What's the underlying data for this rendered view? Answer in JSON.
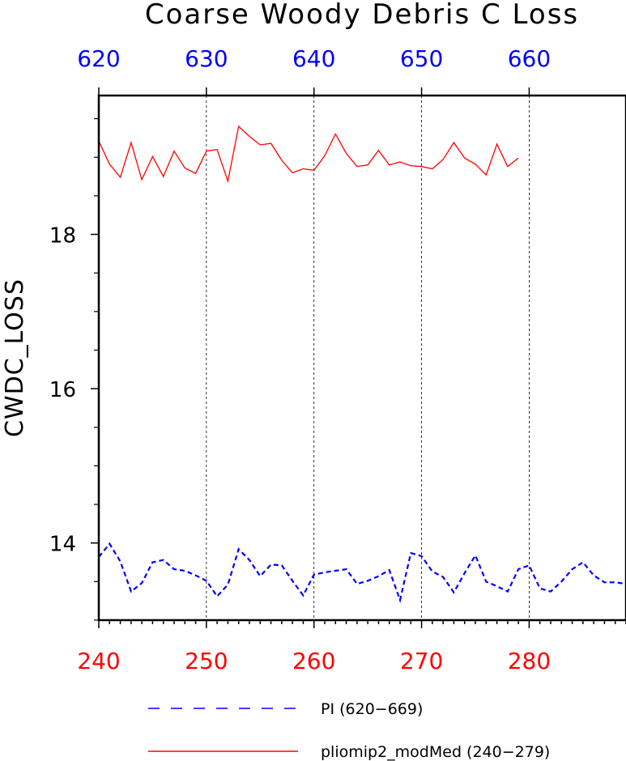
{
  "chart_data": {
    "type": "line",
    "title": "Coarse Woody Debris C Loss",
    "ylabel": "CWDC_LOSS",
    "xlabel": "",
    "grid": "vertical dashed lines at bottom-axis major ticks",
    "legend_placement": "bottom",
    "ylim": [
      13.0,
      19.8
    ],
    "x_bottom": {
      "range": [
        240,
        289
      ],
      "ticks": [
        240,
        250,
        260,
        270,
        280
      ],
      "tick_labels": [
        "240",
        "250",
        "260",
        "270",
        "280"
      ],
      "color": "#ff0000"
    },
    "x_top": {
      "range": [
        620,
        669
      ],
      "ticks": [
        620,
        630,
        640,
        650,
        660
      ],
      "tick_labels": [
        "620",
        "630",
        "640",
        "650",
        "660"
      ],
      "color": "#0000ff"
    },
    "y_ticks": [
      14,
      16,
      18
    ],
    "y_tick_labels": [
      "14",
      "16",
      "18"
    ],
    "y_minor_ticks": [
      13.0,
      13.5,
      14.5,
      15.0,
      15.5,
      16.5,
      17.0,
      17.5,
      18.5,
      19.0,
      19.5
    ],
    "series": [
      {
        "name": "PI (620−669)",
        "axis": "top",
        "color": "#0000ff",
        "dash": "dashed",
        "x": [
          620,
          621,
          622,
          623,
          624,
          625,
          626,
          627,
          628,
          629,
          630,
          631,
          632,
          633,
          634,
          635,
          636,
          637,
          638,
          639,
          640,
          641,
          642,
          643,
          644,
          645,
          646,
          647,
          648,
          649,
          650,
          651,
          652,
          653,
          654,
          655,
          656,
          657,
          658,
          659,
          660,
          661,
          662,
          663,
          664,
          665,
          666,
          667,
          668,
          669
        ],
        "values": [
          13.82,
          13.99,
          13.76,
          13.37,
          13.48,
          13.75,
          13.78,
          13.66,
          13.64,
          13.58,
          13.51,
          13.31,
          13.46,
          13.92,
          13.78,
          13.57,
          13.72,
          13.71,
          13.51,
          13.32,
          13.59,
          13.62,
          13.64,
          13.66,
          13.47,
          13.51,
          13.57,
          13.65,
          13.26,
          13.87,
          13.83,
          13.63,
          13.56,
          13.36,
          13.61,
          13.84,
          13.5,
          13.44,
          13.37,
          13.66,
          13.71,
          13.41,
          13.37,
          13.5,
          13.66,
          13.75,
          13.58,
          13.49,
          13.49,
          13.47
        ]
      },
      {
        "name": "pliomip2_modMed (240−279)",
        "axis": "bottom",
        "color": "#ff0000",
        "dash": "solid",
        "x": [
          240,
          241,
          242,
          243,
          244,
          245,
          246,
          247,
          248,
          249,
          250,
          251,
          252,
          253,
          254,
          255,
          256,
          257,
          258,
          259,
          260,
          261,
          262,
          263,
          264,
          265,
          266,
          267,
          268,
          269,
          270,
          271,
          272,
          273,
          274,
          275,
          276,
          277,
          278,
          279
        ],
        "values": [
          19.21,
          18.91,
          18.74,
          19.19,
          18.71,
          19.01,
          18.75,
          19.08,
          18.86,
          18.79,
          19.08,
          19.1,
          18.69,
          19.4,
          19.27,
          19.16,
          19.18,
          18.96,
          18.8,
          18.85,
          18.83,
          19.02,
          19.3,
          19.05,
          18.88,
          18.9,
          19.09,
          18.9,
          18.94,
          18.89,
          18.88,
          18.85,
          18.97,
          19.19,
          18.99,
          18.91,
          18.77,
          19.17,
          18.88,
          18.99
        ]
      }
    ]
  }
}
